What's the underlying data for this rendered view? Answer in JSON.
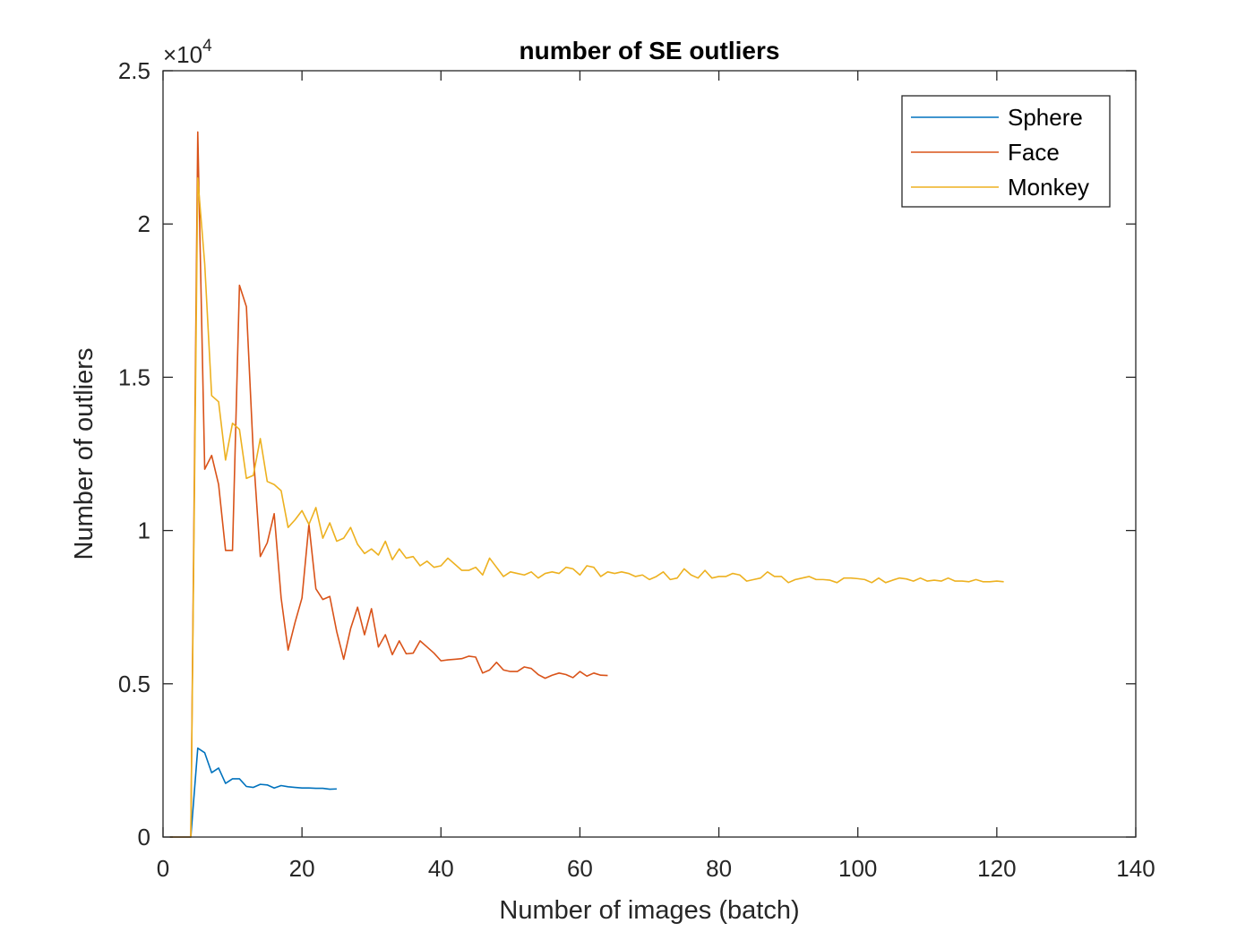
{
  "chart_data": {
    "type": "line",
    "title": "number of SE outliers",
    "xlabel": "Number of images (batch)",
    "ylabel": "Number of outliers",
    "xlim": [
      0,
      140
    ],
    "ylim": [
      0,
      25000
    ],
    "x_ticks": [
      0,
      20,
      40,
      60,
      80,
      100,
      120,
      140
    ],
    "x_tick_labels": [
      "0",
      "20",
      "40",
      "60",
      "80",
      "100",
      "120",
      "140"
    ],
    "y_ticks": [
      0,
      5000,
      10000,
      15000,
      20000,
      25000
    ],
    "y_tick_labels": [
      "0",
      "0.5",
      "1",
      "1.5",
      "2",
      "2.5"
    ],
    "y_exponent_label": {
      "base": "×10",
      "power": "4"
    },
    "legend_position": "top-right",
    "series": [
      {
        "name": "Sphere",
        "color": "#0072BD",
        "x": [
          1,
          2,
          3,
          4,
          5,
          6,
          7,
          8,
          9,
          10,
          11,
          12,
          13,
          14,
          15,
          16,
          17,
          18,
          19,
          20,
          21,
          22,
          23,
          24,
          25
        ],
        "y": [
          0,
          0,
          0,
          0,
          2900,
          2750,
          2100,
          2250,
          1750,
          1900,
          1900,
          1650,
          1620,
          1720,
          1700,
          1600,
          1680,
          1640,
          1620,
          1600,
          1600,
          1590,
          1590,
          1560,
          1570
        ]
      },
      {
        "name": "Face",
        "color": "#D95319",
        "x": [
          1,
          2,
          3,
          4,
          5,
          6,
          7,
          8,
          9,
          10,
          11,
          12,
          13,
          14,
          15,
          16,
          17,
          18,
          19,
          20,
          21,
          22,
          23,
          24,
          25,
          26,
          27,
          28,
          29,
          30,
          31,
          32,
          33,
          34,
          35,
          36,
          37,
          38,
          39,
          40,
          41,
          42,
          43,
          44,
          45,
          46,
          47,
          48,
          49,
          50,
          51,
          52,
          53,
          54,
          55,
          56,
          57,
          58,
          59,
          60,
          61,
          62,
          63,
          64
        ],
        "y": [
          0,
          0,
          0,
          0,
          23000,
          12000,
          12450,
          11500,
          9350,
          9350,
          18000,
          17300,
          12500,
          9150,
          9600,
          10550,
          7800,
          6100,
          7000,
          7800,
          10200,
          8100,
          7750,
          7850,
          6700,
          5800,
          6800,
          7500,
          6600,
          7450,
          6200,
          6600,
          5950,
          6400,
          5980,
          6000,
          6400,
          6200,
          6000,
          5750,
          5780,
          5800,
          5820,
          5900,
          5870,
          5350,
          5450,
          5700,
          5450,
          5400,
          5400,
          5550,
          5500,
          5300,
          5180,
          5280,
          5350,
          5300,
          5200,
          5400,
          5250,
          5350,
          5280,
          5270
        ]
      },
      {
        "name": "Monkey",
        "color": "#EDB120",
        "x": [
          1,
          2,
          3,
          4,
          5,
          6,
          7,
          8,
          9,
          10,
          11,
          12,
          13,
          14,
          15,
          16,
          17,
          18,
          19,
          20,
          21,
          22,
          23,
          24,
          25,
          26,
          27,
          28,
          29,
          30,
          31,
          32,
          33,
          34,
          35,
          36,
          37,
          38,
          39,
          40,
          41,
          42,
          43,
          44,
          45,
          46,
          47,
          48,
          49,
          50,
          51,
          52,
          53,
          54,
          55,
          56,
          57,
          58,
          59,
          60,
          61,
          62,
          63,
          64,
          65,
          66,
          67,
          68,
          69,
          70,
          71,
          72,
          73,
          74,
          75,
          76,
          77,
          78,
          79,
          80,
          81,
          82,
          83,
          84,
          85,
          86,
          87,
          88,
          89,
          90,
          91,
          92,
          93,
          94,
          95,
          96,
          97,
          98,
          99,
          100,
          101,
          102,
          103,
          104,
          105,
          106,
          107,
          108,
          109,
          110,
          111,
          112,
          113,
          114,
          115,
          116,
          117,
          118,
          119,
          120,
          121
        ],
        "y": [
          0,
          0,
          0,
          0,
          21500,
          18700,
          14400,
          14200,
          12300,
          13500,
          13300,
          11700,
          11800,
          13000,
          11600,
          11500,
          11300,
          10100,
          10350,
          10650,
          10200,
          10750,
          9750,
          10250,
          9650,
          9750,
          10100,
          9550,
          9250,
          9400,
          9200,
          9650,
          9050,
          9400,
          9100,
          9150,
          8850,
          9000,
          8800,
          8850,
          9100,
          8900,
          8700,
          8700,
          8800,
          8550,
          9100,
          8800,
          8500,
          8650,
          8600,
          8550,
          8650,
          8450,
          8600,
          8650,
          8600,
          8800,
          8750,
          8550,
          8850,
          8800,
          8500,
          8650,
          8600,
          8650,
          8600,
          8500,
          8550,
          8400,
          8500,
          8650,
          8400,
          8450,
          8750,
          8550,
          8450,
          8700,
          8450,
          8500,
          8500,
          8600,
          8550,
          8350,
          8400,
          8450,
          8650,
          8500,
          8500,
          8300,
          8400,
          8450,
          8500,
          8400,
          8400,
          8380,
          8300,
          8450,
          8450,
          8430,
          8400,
          8300,
          8450,
          8300,
          8380,
          8450,
          8420,
          8350,
          8450,
          8350,
          8380,
          8350,
          8450,
          8350,
          8350,
          8330,
          8400,
          8330,
          8330,
          8350,
          8330
        ]
      }
    ]
  }
}
